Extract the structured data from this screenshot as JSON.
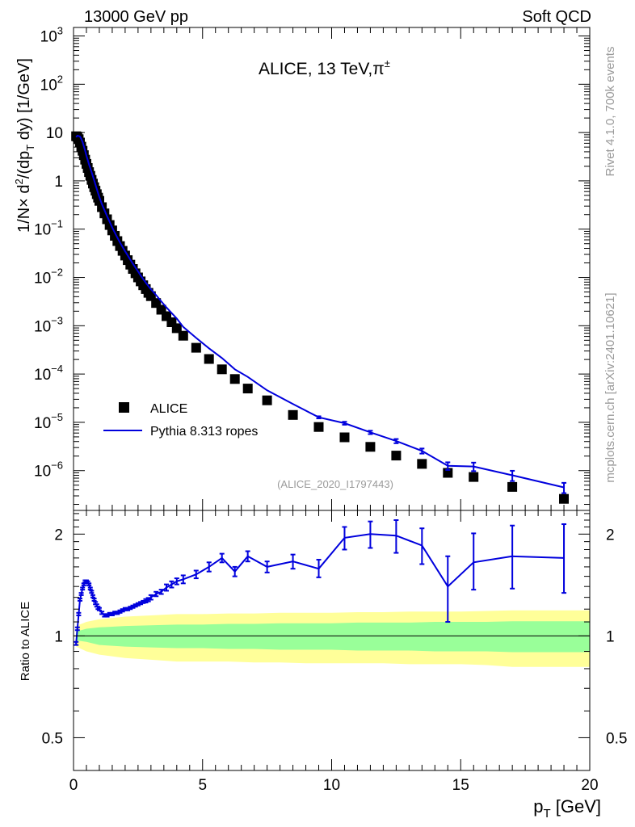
{
  "header": {
    "left": "13000 GeV pp",
    "right": "Soft QCD"
  },
  "side_labels": {
    "rivet": "Rivet 4.1.0,  700k events",
    "mcplots": "mcplots.cern.ch [arXiv:2401.10621]"
  },
  "colors": {
    "mc": "#0000dd",
    "data": "#000000",
    "band_inner": "#99ff99",
    "band_outer": "#ffff99",
    "watermark": "#9a9a9a"
  },
  "chart_data": {
    "type": "scatter",
    "title": "ALICE, 13 TeV,π±",
    "title_main": "ALICE, 13 TeV,π",
    "title_sup": "±",
    "analysis_tag": "(ALICE_2020_I1797443)",
    "xlabel": "p_T [GeV]",
    "xlabel_main": "p",
    "xlabel_sub": "T",
    "xlabel_unit": " [GeV]",
    "ylabel": "1/N × d²/(dp_T dy) [1/GeV]",
    "ylabel_parts": {
      "a": "1/N",
      "times": "×",
      "b": " d",
      "sup": "2",
      "c": "/(dp",
      "sub": "T",
      "d": " dy) [1/GeV]"
    },
    "xlim": [
      0,
      20
    ],
    "ylim": [
      1.5e-07,
      1500
    ],
    "yscale": "log",
    "x_ticks": [
      "0",
      "5",
      "10",
      "15",
      "20"
    ],
    "y_ticks": [
      {
        "base": "10",
        "exp": "3",
        "value": 1000
      },
      {
        "base": "10",
        "exp": "2",
        "value": 100
      },
      {
        "base": "10",
        "exp": "",
        "value": 10
      },
      {
        "base": "1",
        "exp": "",
        "value": 1
      },
      {
        "base": "10",
        "exp": "−1",
        "value": 0.1
      },
      {
        "base": "10",
        "exp": "−2",
        "value": 0.01
      },
      {
        "base": "10",
        "exp": "−3",
        "value": 0.001
      },
      {
        "base": "10",
        "exp": "−4",
        "value": 0.0001
      },
      {
        "base": "10",
        "exp": "−5",
        "value": 1e-05
      },
      {
        "base": "10",
        "exp": "−6",
        "value": 1e-06
      }
    ],
    "legend": {
      "position": "bottom-left",
      "entries": [
        "ALICE",
        "Pythia 8.313 ropes"
      ]
    },
    "series": [
      {
        "name": "ALICE",
        "kind": "markers",
        "x": [
          0.1,
          0.15,
          0.2,
          0.25,
          0.3,
          0.35,
          0.4,
          0.45,
          0.5,
          0.55,
          0.6,
          0.65,
          0.7,
          0.75,
          0.8,
          0.85,
          0.9,
          0.95,
          1.0,
          1.1,
          1.2,
          1.3,
          1.4,
          1.5,
          1.6,
          1.7,
          1.8,
          1.9,
          2.0,
          2.1,
          2.2,
          2.3,
          2.4,
          2.5,
          2.6,
          2.7,
          2.8,
          2.9,
          3.0,
          3.2,
          3.4,
          3.6,
          3.8,
          4.0,
          4.25,
          4.75,
          5.25,
          5.75,
          6.25,
          6.75,
          7.5,
          8.5,
          9.5,
          10.5,
          11.5,
          12.5,
          13.5,
          14.5,
          15.5,
          17.0,
          19.0
        ],
        "y": [
          8.4,
          8.2,
          7.3,
          6.2,
          5.1,
          4.2,
          3.4,
          2.75,
          2.25,
          1.85,
          1.52,
          1.27,
          1.05,
          0.88,
          0.74,
          0.625,
          0.53,
          0.45,
          0.385,
          0.285,
          0.212,
          0.16,
          0.122,
          0.094,
          0.0727,
          0.0567,
          0.0446,
          0.0355,
          0.0284,
          0.0228,
          0.0184,
          0.015,
          0.0122,
          0.01,
          0.0083,
          0.0069,
          0.00575,
          0.0048,
          0.0041,
          0.00295,
          0.00215,
          0.00158,
          0.00118,
          0.000888,
          0.00062,
          0.00035,
          0.000205,
          0.000125,
          7.9e-05,
          5e-05,
          2.85e-05,
          1.42e-05,
          8e-06,
          4.9e-06,
          3.1e-06,
          2.05e-06,
          1.38e-06,
          9e-07,
          7.4e-07,
          4.6e-07,
          2.6e-07
        ]
      },
      {
        "name": "Pythia 8.313 ropes",
        "kind": "line",
        "x": [
          0.1,
          0.15,
          0.2,
          0.25,
          0.3,
          0.35,
          0.4,
          0.45,
          0.5,
          0.55,
          0.6,
          0.65,
          0.7,
          0.75,
          0.8,
          0.85,
          0.9,
          0.95,
          1.0,
          1.1,
          1.2,
          1.3,
          1.4,
          1.5,
          1.6,
          1.7,
          1.8,
          1.9,
          2.0,
          2.1,
          2.2,
          2.3,
          2.4,
          2.5,
          2.6,
          2.7,
          2.8,
          2.9,
          3.0,
          3.2,
          3.4,
          3.6,
          3.8,
          4.0,
          4.25,
          4.75,
          5.25,
          5.75,
          6.25,
          6.75,
          7.5,
          8.5,
          9.5,
          10.5,
          11.5,
          12.5,
          13.5,
          14.5,
          15.5,
          17.0,
          19.0
        ],
        "y": [
          8.0,
          8.6,
          8.5,
          8.3,
          7.4,
          6.4,
          5.2,
          4.2,
          3.3,
          2.7,
          2.18,
          1.82,
          1.51,
          1.24,
          1.02,
          0.83,
          0.68,
          0.555,
          0.46,
          0.33,
          0.247,
          0.186,
          0.142,
          0.108,
          0.0845,
          0.0665,
          0.053,
          0.0428,
          0.0347,
          0.0285,
          0.0234,
          0.0192,
          0.016,
          0.0133,
          0.011,
          0.0092,
          0.0078,
          0.0066,
          0.0057,
          0.0043,
          0.0032,
          0.0024,
          0.00183,
          0.00141,
          0.000944,
          0.00056,
          0.00034,
          0.000215,
          0.000125,
          8.7e-05,
          4.6e-05,
          2.4e-05,
          1.27e-05,
          9.6e-06,
          6.2e-06,
          4.1e-06,
          2.56e-06,
          1.26e-06,
          1.22e-06,
          8e-07,
          4.5e-07
        ],
        "err_rel": [
          0.01,
          0.01,
          0.01,
          0.01,
          0.01,
          0.01,
          0.01,
          0.01,
          0.01,
          0.01,
          0.01,
          0.01,
          0.01,
          0.01,
          0.01,
          0.01,
          0.01,
          0.01,
          0.01,
          0.01,
          0.01,
          0.01,
          0.01,
          0.01,
          0.01,
          0.01,
          0.01,
          0.01,
          0.01,
          0.01,
          0.01,
          0.01,
          0.01,
          0.01,
          0.01,
          0.01,
          0.01,
          0.01,
          0.01,
          0.01,
          0.015,
          0.015,
          0.015,
          0.015,
          0.015,
          0.02,
          0.02,
          0.025,
          0.025,
          0.03,
          0.03,
          0.04,
          0.05,
          0.07,
          0.08,
          0.1,
          0.12,
          0.18,
          0.2,
          0.24,
          0.24
        ]
      }
    ],
    "ratio_panel": {
      "ylabel": "Ratio to ALICE",
      "ylim": [
        0.4,
        2.35
      ],
      "yscale": "log",
      "y_ticks": [
        {
          "label": "0.5",
          "value": 0.5
        },
        {
          "label": "1",
          "value": 1
        },
        {
          "label": "2",
          "value": 2
        }
      ],
      "mc_ratio": {
        "x": [
          0.1,
          0.15,
          0.2,
          0.25,
          0.3,
          0.35,
          0.4,
          0.45,
          0.5,
          0.55,
          0.6,
          0.65,
          0.7,
          0.75,
          0.8,
          0.85,
          0.9,
          0.95,
          1.0,
          1.1,
          1.2,
          1.3,
          1.4,
          1.5,
          1.6,
          1.7,
          1.8,
          1.9,
          2.0,
          2.1,
          2.2,
          2.3,
          2.4,
          2.5,
          2.6,
          2.7,
          2.8,
          2.9,
          3.0,
          3.2,
          3.4,
          3.6,
          3.8,
          4.0,
          4.25,
          4.75,
          5.25,
          5.75,
          6.25,
          6.75,
          7.5,
          8.5,
          9.5,
          10.5,
          11.5,
          12.5,
          13.5,
          14.5,
          15.5,
          17.0,
          19.0
        ],
        "y": [
          0.95,
          1.05,
          1.16,
          1.28,
          1.33,
          1.38,
          1.42,
          1.45,
          1.45,
          1.44,
          1.42,
          1.38,
          1.35,
          1.31,
          1.28,
          1.25,
          1.23,
          1.21,
          1.2,
          1.17,
          1.15,
          1.15,
          1.16,
          1.16,
          1.17,
          1.17,
          1.18,
          1.19,
          1.2,
          1.2,
          1.21,
          1.22,
          1.23,
          1.24,
          1.25,
          1.26,
          1.27,
          1.28,
          1.3,
          1.33,
          1.35,
          1.39,
          1.42,
          1.45,
          1.47,
          1.52,
          1.6,
          1.7,
          1.55,
          1.72,
          1.6,
          1.66,
          1.58,
          1.95,
          2.0,
          1.98,
          1.85,
          1.4,
          1.65,
          1.72,
          1.7
        ],
        "err_low": [
          0.01,
          0.01,
          0.01,
          0.01,
          0.01,
          0.01,
          0.01,
          0.01,
          0.01,
          0.01,
          0.01,
          0.01,
          0.01,
          0.01,
          0.01,
          0.01,
          0.01,
          0.01,
          0.01,
          0.01,
          0.01,
          0.01,
          0.01,
          0.01,
          0.01,
          0.01,
          0.01,
          0.01,
          0.01,
          0.01,
          0.01,
          0.01,
          0.01,
          0.01,
          0.01,
          0.01,
          0.015,
          0.015,
          0.02,
          0.02,
          0.02,
          0.03,
          0.03,
          0.03,
          0.04,
          0.04,
          0.05,
          0.05,
          0.05,
          0.06,
          0.06,
          0.08,
          0.09,
          0.15,
          0.18,
          0.22,
          0.22,
          0.3,
          0.28,
          0.34,
          0.36
        ],
        "err_high": [
          0.01,
          0.01,
          0.01,
          0.01,
          0.01,
          0.01,
          0.01,
          0.01,
          0.01,
          0.01,
          0.01,
          0.01,
          0.01,
          0.01,
          0.01,
          0.01,
          0.01,
          0.01,
          0.01,
          0.01,
          0.01,
          0.01,
          0.01,
          0.01,
          0.01,
          0.01,
          0.01,
          0.01,
          0.01,
          0.01,
          0.01,
          0.01,
          0.01,
          0.01,
          0.01,
          0.01,
          0.015,
          0.015,
          0.02,
          0.02,
          0.02,
          0.03,
          0.03,
          0.03,
          0.04,
          0.04,
          0.05,
          0.05,
          0.05,
          0.06,
          0.06,
          0.08,
          0.1,
          0.15,
          0.18,
          0.22,
          0.23,
          0.32,
          0.36,
          0.4,
          0.44
        ]
      },
      "band": {
        "x": [
          0.1,
          0.5,
          1.0,
          2.0,
          3.0,
          4.0,
          5.0,
          6.0,
          7.0,
          8.0,
          9.0,
          10.0,
          11.0,
          12.0,
          13.0,
          14.0,
          15.0,
          16.0,
          17.0,
          18.0,
          20.0
        ],
        "inner_low": [
          0.97,
          0.96,
          0.94,
          0.93,
          0.925,
          0.92,
          0.92,
          0.915,
          0.915,
          0.91,
          0.91,
          0.91,
          0.905,
          0.905,
          0.905,
          0.9,
          0.9,
          0.9,
          0.895,
          0.895,
          0.895
        ],
        "inner_high": [
          1.03,
          1.05,
          1.06,
          1.07,
          1.075,
          1.08,
          1.08,
          1.085,
          1.085,
          1.09,
          1.09,
          1.09,
          1.095,
          1.095,
          1.095,
          1.1,
          1.1,
          1.1,
          1.105,
          1.105,
          1.105
        ],
        "outer_low": [
          0.93,
          0.9,
          0.88,
          0.86,
          0.85,
          0.84,
          0.84,
          0.84,
          0.835,
          0.835,
          0.83,
          0.83,
          0.83,
          0.83,
          0.825,
          0.825,
          0.825,
          0.82,
          0.81,
          0.81,
          0.81
        ],
        "outer_high": [
          1.07,
          1.1,
          1.12,
          1.14,
          1.15,
          1.16,
          1.16,
          1.165,
          1.165,
          1.17,
          1.17,
          1.17,
          1.175,
          1.175,
          1.18,
          1.18,
          1.18,
          1.185,
          1.19,
          1.19,
          1.19
        ]
      }
    }
  }
}
